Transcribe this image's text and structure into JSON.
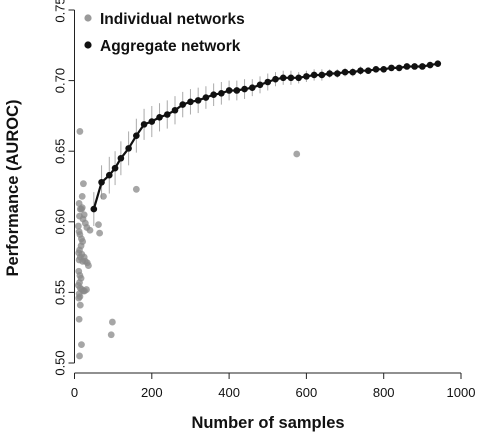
{
  "chart_data": {
    "type": "scatter",
    "xlabel": "Number of samples",
    "ylabel": "Performance (AUROC)",
    "xlim": [
      0,
      1000
    ],
    "ylim": [
      0.5,
      0.75
    ],
    "xticks": [
      "0",
      "200",
      "400",
      "600",
      "800",
      "1000"
    ],
    "yticks": [
      "0.50",
      "0.55",
      "0.60",
      "0.65",
      "0.70",
      "0.75"
    ],
    "grid": false,
    "legend_position": "top-left",
    "legend": [
      {
        "label": "Individual networks",
        "color": "#999999"
      },
      {
        "label": "Aggregate network",
        "color": "#111111"
      }
    ],
    "series": [
      {
        "name": "Individual networks",
        "type": "scatter",
        "color": "#888888",
        "points": [
          [
            14,
            0.664
          ],
          [
            23,
            0.627
          ],
          [
            20,
            0.618
          ],
          [
            75,
            0.618
          ],
          [
            160,
            0.623
          ],
          [
            575,
            0.648
          ],
          [
            12,
            0.613
          ],
          [
            15,
            0.609
          ],
          [
            18,
            0.609
          ],
          [
            20,
            0.61
          ],
          [
            25,
            0.605
          ],
          [
            13,
            0.604
          ],
          [
            22,
            0.602
          ],
          [
            28,
            0.599
          ],
          [
            32,
            0.596
          ],
          [
            40,
            0.594
          ],
          [
            62,
            0.598
          ],
          [
            65,
            0.592
          ],
          [
            10,
            0.597
          ],
          [
            12,
            0.593
          ],
          [
            14,
            0.591
          ],
          [
            18,
            0.588
          ],
          [
            21,
            0.586
          ],
          [
            17,
            0.583
          ],
          [
            13,
            0.58
          ],
          [
            11,
            0.578
          ],
          [
            19,
            0.577
          ],
          [
            15,
            0.575
          ],
          [
            12,
            0.573
          ],
          [
            21,
            0.572
          ],
          [
            25,
            0.575
          ],
          [
            28,
            0.572
          ],
          [
            33,
            0.571
          ],
          [
            36,
            0.569
          ],
          [
            11,
            0.565
          ],
          [
            14,
            0.562
          ],
          [
            17,
            0.56
          ],
          [
            13,
            0.557
          ],
          [
            10,
            0.555
          ],
          [
            15,
            0.553
          ],
          [
            19,
            0.552
          ],
          [
            23,
            0.551
          ],
          [
            26,
            0.551
          ],
          [
            31,
            0.552
          ],
          [
            12,
            0.549
          ],
          [
            14,
            0.547
          ],
          [
            11,
            0.546
          ],
          [
            15,
            0.541
          ],
          [
            12,
            0.531
          ],
          [
            98,
            0.529
          ],
          [
            95,
            0.52
          ],
          [
            18,
            0.513
          ],
          [
            13,
            0.505
          ]
        ]
      },
      {
        "name": "Aggregate network",
        "type": "line",
        "color": "#111111",
        "x": [
          50,
          70,
          90,
          105,
          120,
          140,
          160,
          180,
          200,
          220,
          240,
          260,
          280,
          300,
          320,
          340,
          360,
          380,
          400,
          420,
          440,
          460,
          480,
          500,
          520,
          540,
          560,
          580,
          600,
          620,
          640,
          660,
          680,
          700,
          720,
          740,
          760,
          780,
          800,
          820,
          840,
          860,
          880,
          900,
          920,
          940
        ],
        "y": [
          0.609,
          0.628,
          0.633,
          0.638,
          0.645,
          0.652,
          0.661,
          0.669,
          0.671,
          0.674,
          0.676,
          0.679,
          0.683,
          0.685,
          0.686,
          0.688,
          0.69,
          0.691,
          0.693,
          0.693,
          0.694,
          0.695,
          0.697,
          0.699,
          0.701,
          0.702,
          0.702,
          0.702,
          0.703,
          0.704,
          0.704,
          0.705,
          0.705,
          0.706,
          0.706,
          0.707,
          0.707,
          0.708,
          0.708,
          0.709,
          0.709,
          0.71,
          0.71,
          0.71,
          0.711,
          0.712
        ],
        "error": [
          0.012,
          0.012,
          0.013,
          0.012,
          0.012,
          0.012,
          0.012,
          0.011,
          0.011,
          0.01,
          0.01,
          0.01,
          0.009,
          0.009,
          0.009,
          0.008,
          0.008,
          0.008,
          0.007,
          0.007,
          0.007,
          0.006,
          0.006,
          0.006,
          0.005,
          0.005,
          0.005,
          0.004,
          0.004,
          0.004,
          0.004,
          0.003,
          0.003,
          0.003,
          0.003,
          0.003,
          0.002,
          0.002,
          0.002,
          0.002,
          0.002,
          0.002,
          0.001,
          0.001,
          0.001,
          0.001
        ]
      }
    ]
  }
}
